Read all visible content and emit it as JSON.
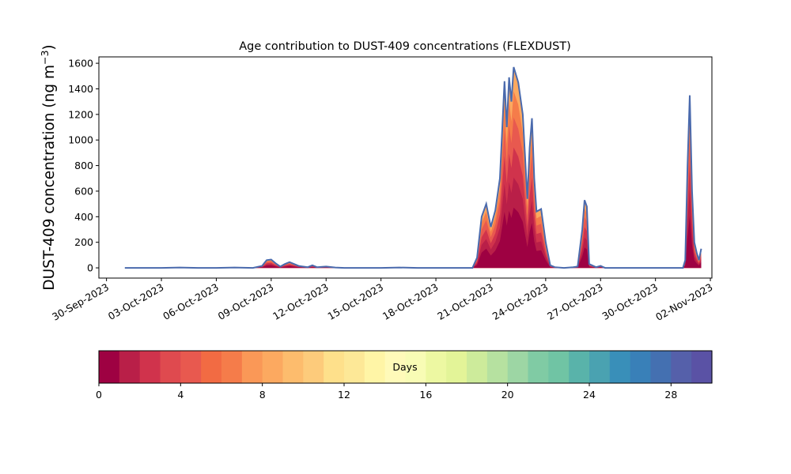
{
  "chart_data": {
    "type": "area",
    "title": "Age contribution to DUST-409 concentrations (FLEXDUST)",
    "ylabel_main": "DUST-409 concentration (ng m",
    "ylabel_sup": "−3",
    "ylabel_close": ")",
    "xlabel": "",
    "ylim": [
      -80,
      1650
    ],
    "yticks": [
      0,
      200,
      400,
      600,
      800,
      1000,
      1200,
      1400,
      1600
    ],
    "xlim": [
      "2023-09-29T14:00",
      "2023-11-02T02:00"
    ],
    "xticks": [
      {
        "date": "2023-09-30",
        "label": "30-Sep-2023"
      },
      {
        "date": "2023-10-03",
        "label": "03-Oct-2023"
      },
      {
        "date": "2023-10-06",
        "label": "06-Oct-2023"
      },
      {
        "date": "2023-10-09",
        "label": "09-Oct-2023"
      },
      {
        "date": "2023-10-12",
        "label": "12-Oct-2023"
      },
      {
        "date": "2023-10-15",
        "label": "15-Oct-2023"
      },
      {
        "date": "2023-10-18",
        "label": "18-Oct-2023"
      },
      {
        "date": "2023-10-21",
        "label": "21-Oct-2023"
      },
      {
        "date": "2023-10-24",
        "label": "24-Oct-2023"
      },
      {
        "date": "2023-10-27",
        "label": "27-Oct-2023"
      },
      {
        "date": "2023-10-30",
        "label": "30-Oct-2023"
      },
      {
        "date": "2023-11-02",
        "label": "02-Nov-2023"
      }
    ],
    "total": [
      [
        "2023-10-01T00:00",
        0
      ],
      [
        "2023-10-03T00:00",
        0
      ],
      [
        "2023-10-04T00:00",
        3
      ],
      [
        "2023-10-05T00:00",
        0
      ],
      [
        "2023-10-06T00:00",
        0
      ],
      [
        "2023-10-07T00:00",
        3
      ],
      [
        "2023-10-08T00:00",
        0
      ],
      [
        "2023-10-08T12:00",
        15
      ],
      [
        "2023-10-08T18:00",
        60
      ],
      [
        "2023-10-09T00:00",
        65
      ],
      [
        "2023-10-09T06:00",
        35
      ],
      [
        "2023-10-09T12:00",
        10
      ],
      [
        "2023-10-09T18:00",
        30
      ],
      [
        "2023-10-10T00:00",
        45
      ],
      [
        "2023-10-10T06:00",
        30
      ],
      [
        "2023-10-10T12:00",
        15
      ],
      [
        "2023-10-11T00:00",
        5
      ],
      [
        "2023-10-11T06:00",
        20
      ],
      [
        "2023-10-11T12:00",
        5
      ],
      [
        "2023-10-12T00:00",
        10
      ],
      [
        "2023-10-12T12:00",
        3
      ],
      [
        "2023-10-13T00:00",
        0
      ],
      [
        "2023-10-15T00:00",
        0
      ],
      [
        "2023-10-16T00:00",
        3
      ],
      [
        "2023-10-17T00:00",
        0
      ],
      [
        "2023-10-20T00:00",
        0
      ],
      [
        "2023-10-20T06:00",
        80
      ],
      [
        "2023-10-20T12:00",
        400
      ],
      [
        "2023-10-20T18:00",
        500
      ],
      [
        "2023-10-21T00:00",
        320
      ],
      [
        "2023-10-21T06:00",
        450
      ],
      [
        "2023-10-21T12:00",
        700
      ],
      [
        "2023-10-21T15:00",
        1080
      ],
      [
        "2023-10-21T18:00",
        1460
      ],
      [
        "2023-10-21T21:00",
        1100
      ],
      [
        "2023-10-22T00:00",
        1490
      ],
      [
        "2023-10-22T03:00",
        1300
      ],
      [
        "2023-10-22T06:00",
        1570
      ],
      [
        "2023-10-22T12:00",
        1450
      ],
      [
        "2023-10-22T18:00",
        1200
      ],
      [
        "2023-10-23T00:00",
        540
      ],
      [
        "2023-10-23T03:00",
        940
      ],
      [
        "2023-10-23T06:00",
        1170
      ],
      [
        "2023-10-23T09:00",
        700
      ],
      [
        "2023-10-23T12:00",
        440
      ],
      [
        "2023-10-23T18:00",
        460
      ],
      [
        "2023-10-24T00:00",
        200
      ],
      [
        "2023-10-24T06:00",
        20
      ],
      [
        "2023-10-24T12:00",
        5
      ],
      [
        "2023-10-25T00:00",
        0
      ],
      [
        "2023-10-25T12:00",
        5
      ],
      [
        "2023-10-25T18:00",
        10
      ],
      [
        "2023-10-26T00:00",
        300
      ],
      [
        "2023-10-26T03:00",
        530
      ],
      [
        "2023-10-26T06:00",
        480
      ],
      [
        "2023-10-26T09:00",
        30
      ],
      [
        "2023-10-26T18:00",
        5
      ],
      [
        "2023-10-27T00:00",
        15
      ],
      [
        "2023-10-27T06:00",
        0
      ],
      [
        "2023-10-31T00:00",
        0
      ],
      [
        "2023-10-31T12:00",
        0
      ],
      [
        "2023-10-31T15:00",
        60
      ],
      [
        "2023-10-31T18:00",
        800
      ],
      [
        "2023-10-31T21:00",
        1350
      ],
      [
        "2023-11-01T00:00",
        600
      ],
      [
        "2023-11-01T03:00",
        200
      ],
      [
        "2023-11-01T06:00",
        120
      ],
      [
        "2023-11-01T09:00",
        60
      ],
      [
        "2023-11-01T12:00",
        150
      ]
    ],
    "colorbar": {
      "label": "Days",
      "min": 0,
      "max": 30,
      "ticks": [
        0,
        4,
        8,
        12,
        16,
        20,
        24,
        28
      ],
      "colors": [
        "#9e0142",
        "#b91f48",
        "#d0334c",
        "#df4a4f",
        "#e8594f",
        "#f26b43",
        "#f57c4a",
        "#fa9857",
        "#fca960",
        "#fdbc6d",
        "#fdcb7b",
        "#fee08b",
        "#fde897",
        "#fff5a6",
        "#fffab9",
        "#f8fcb5",
        "#edf8a2",
        "#e3f498",
        "#cdeb9b",
        "#b6e1a0",
        "#9dd6a4",
        "#80cba4",
        "#70c4a4",
        "#59b3aa",
        "#4aa2b1",
        "#398fb9",
        "#3980b8",
        "#4470b1",
        "#5560aa",
        "#5a52a5"
      ]
    }
  }
}
